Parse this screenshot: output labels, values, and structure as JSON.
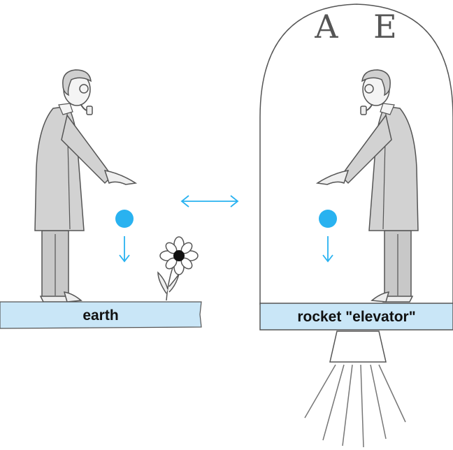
{
  "labels": {
    "earth": "earth",
    "rocket": "rocket \"elevator\"",
    "rocket_mark": "A E"
  },
  "icons": {
    "equivalence_arrow": "double-headed-arrow",
    "fall_arrow": "down-arrow",
    "flower": "flower-icon"
  },
  "colors": {
    "ball": "#29b2f0",
    "arrow": "#29b2f0",
    "platform": "#c9e6f7",
    "coat": "#d2d2d2",
    "outline": "#555555"
  }
}
